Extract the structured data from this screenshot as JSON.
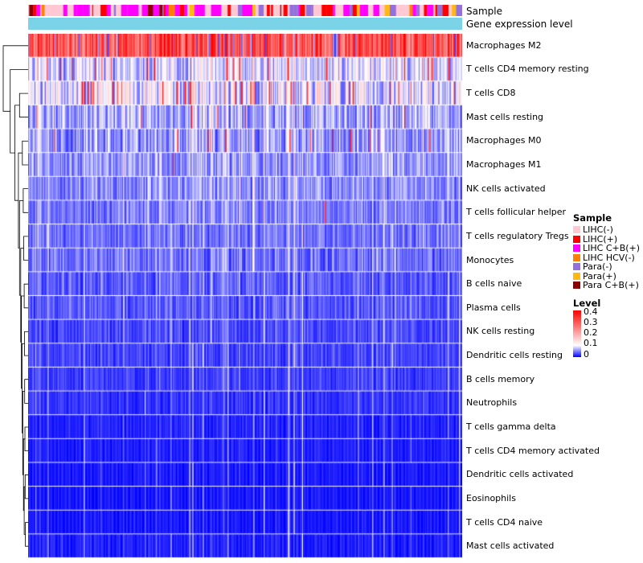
{
  "chart_data": {
    "type": "heatmap",
    "title": "",
    "description": "Immune cell composition heatmap: rows are immune cell types (hierarchically clustered), columns are samples; values are gene expression levels from 0 to 0.4",
    "rows": [
      {
        "label": "Macrophages M2",
        "mean_level": 0.31,
        "sd": 0.06,
        "hi_spike_p": 0.04,
        "lo_spike_p": 0.07
      },
      {
        "label": "T cells CD4 memory resting",
        "mean_level": 0.085,
        "sd": 0.05,
        "hi_spike_p": 0.06,
        "lo_spike_p": 0
      },
      {
        "label": "T cells CD8",
        "mean_level": 0.09,
        "sd": 0.06,
        "hi_spike_p": 0.05,
        "lo_spike_p": 0
      },
      {
        "label": "Mast cells resting",
        "mean_level": 0.065,
        "sd": 0.04,
        "hi_spike_p": 0.015,
        "lo_spike_p": 0
      },
      {
        "label": "Macrophages M0",
        "mean_level": 0.06,
        "sd": 0.04,
        "hi_spike_p": 0.02,
        "lo_spike_p": 0
      },
      {
        "label": "Macrophages M1",
        "mean_level": 0.055,
        "sd": 0.03,
        "hi_spike_p": 0.004,
        "lo_spike_p": 0
      },
      {
        "label": "NK cells activated",
        "mean_level": 0.05,
        "sd": 0.03,
        "hi_spike_p": 0.003,
        "lo_spike_p": 0
      },
      {
        "label": "T cells follicular helper",
        "mean_level": 0.045,
        "sd": 0.025,
        "hi_spike_p": 0.002,
        "lo_spike_p": 0
      },
      {
        "label": "T cells regulatory Tregs",
        "mean_level": 0.04,
        "sd": 0.022,
        "hi_spike_p": 0,
        "lo_spike_p": 0
      },
      {
        "label": "Monocytes",
        "mean_level": 0.04,
        "sd": 0.025,
        "hi_spike_p": 0.002,
        "lo_spike_p": 0
      },
      {
        "label": "B cells naive",
        "mean_level": 0.032,
        "sd": 0.02,
        "hi_spike_p": 0,
        "lo_spike_p": 0
      },
      {
        "label": "Plasma cells",
        "mean_level": 0.03,
        "sd": 0.02,
        "hi_spike_p": 0,
        "lo_spike_p": 0
      },
      {
        "label": "NK cells resting",
        "mean_level": 0.025,
        "sd": 0.018,
        "hi_spike_p": 0,
        "lo_spike_p": 0
      },
      {
        "label": "Dendritic cells resting",
        "mean_level": 0.022,
        "sd": 0.016,
        "hi_spike_p": 0,
        "lo_spike_p": 0
      },
      {
        "label": "B cells memory",
        "mean_level": 0.02,
        "sd": 0.015,
        "hi_spike_p": 0,
        "lo_spike_p": 0
      },
      {
        "label": "Neutrophils",
        "mean_level": 0.016,
        "sd": 0.013,
        "hi_spike_p": 0,
        "lo_spike_p": 0
      },
      {
        "label": "T cells gamma delta",
        "mean_level": 0.01,
        "sd": 0.01,
        "hi_spike_p": 0,
        "lo_spike_p": 0
      },
      {
        "label": "T cells CD4 memory activated",
        "mean_level": 0.008,
        "sd": 0.008,
        "hi_spike_p": 0,
        "lo_spike_p": 0
      },
      {
        "label": "Dendritic cells activated",
        "mean_level": 0.006,
        "sd": 0.007,
        "hi_spike_p": 0,
        "lo_spike_p": 0
      },
      {
        "label": "Eosinophils",
        "mean_level": 0.005,
        "sd": 0.006,
        "hi_spike_p": 0,
        "lo_spike_p": 0
      },
      {
        "label": "T cells CD4 naive",
        "mean_level": 0.005,
        "sd": 0.007,
        "hi_spike_p": 0,
        "lo_spike_p": 0
      },
      {
        "label": "Mast cells activated",
        "mean_level": 0.008,
        "sd": 0.01,
        "hi_spike_p": 0.002,
        "lo_spike_p": 0
      }
    ],
    "colormap": {
      "min": 0,
      "mid": 0.1,
      "max": 0.4,
      "min_color": "#0000FF",
      "mid_color": "#FFFFFF",
      "max_color": "#FF0000"
    },
    "top_annotations": [
      {
        "label": "Sample",
        "type": "categorical",
        "categories": [
          {
            "label": "LIHC(-)",
            "color": "#FFC8D2",
            "weight": 0.4
          },
          {
            "label": "LIHC(+)",
            "color": "#FF0000",
            "weight": 0.14
          },
          {
            "label": "LIHC C+B(+)",
            "color": "#FF00FF",
            "weight": 0.2
          },
          {
            "label": "LIHC HCV(-)",
            "color": "#FF7F00",
            "weight": 0.03
          },
          {
            "label": "Para(-)",
            "color": "#9370DB",
            "weight": 0.15
          },
          {
            "label": "Para(+)",
            "color": "#FFB90F",
            "weight": 0.04
          },
          {
            "label": "Para C+B(+)",
            "color": "#8B0000",
            "weight": 0.04
          }
        ]
      },
      {
        "label": "Gene expression level",
        "type": "uniform",
        "color": "#7AD3E6"
      }
    ],
    "legend": {
      "sample_title": "Sample",
      "level_title": "Level",
      "level_ticks": [
        "0.4",
        "0.3",
        "0.2",
        "0.1",
        "0"
      ]
    },
    "row_dendrogram_merges": [
      [
        20,
        21,
        0.05
      ],
      [
        18,
        19,
        0.06
      ],
      [
        22,
        23,
        0.1
      ],
      [
        16,
        17,
        0.07
      ],
      [
        24,
        25,
        0.13
      ],
      [
        14,
        15,
        0.08
      ],
      [
        26,
        27,
        0.16
      ],
      [
        12,
        13,
        0.09
      ],
      [
        28,
        29,
        0.19
      ],
      [
        10,
        11,
        0.1
      ],
      [
        30,
        31,
        0.22
      ],
      [
        8,
        9,
        0.12
      ],
      [
        32,
        33,
        0.25
      ],
      [
        6,
        7,
        0.14
      ],
      [
        34,
        35,
        0.3
      ],
      [
        4,
        5,
        0.18
      ],
      [
        36,
        37,
        0.35
      ],
      [
        2,
        3,
        0.3
      ],
      [
        38,
        39,
        0.5
      ],
      [
        1,
        40,
        0.7
      ],
      [
        0,
        41,
        1.0
      ]
    ],
    "layout": {
      "n_columns": 420,
      "legend_position": "right",
      "grid": false,
      "ylim": [
        0,
        0.4
      ]
    }
  }
}
